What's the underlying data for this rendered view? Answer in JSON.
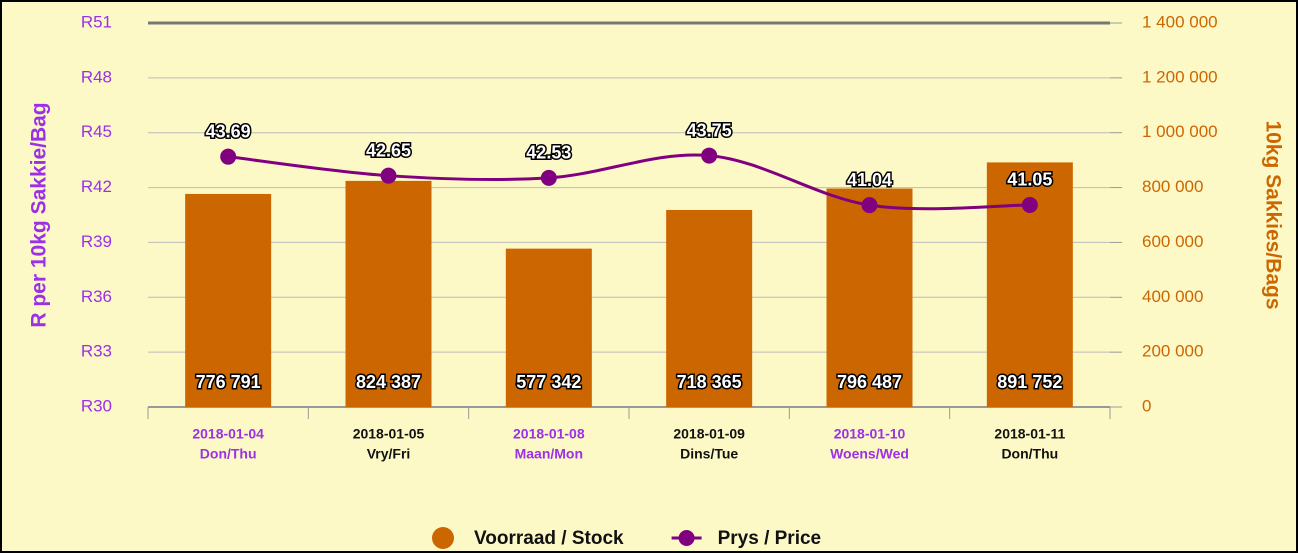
{
  "chart_data": {
    "type": "bar_line",
    "categories": [
      "2018-01-04",
      "2018-01-05",
      "2018-01-08",
      "2018-01-09",
      "2018-01-10",
      "2018-01-11"
    ],
    "category_days": [
      "Don/Thu",
      "Vry/Fri",
      "Maan/Mon",
      "Dins/Tue",
      "Woens/Wed",
      "Don/Thu"
    ],
    "category_colors": [
      "#9b30e8",
      "#111111",
      "#9b30e8",
      "#111111",
      "#9b30e8",
      "#111111"
    ],
    "y_label": "R per 10kg Sakkie/Bag",
    "y2_label": "10kg Sakkies/Bags",
    "ylim": [
      30,
      51
    ],
    "yticks": [
      {
        "value": 30,
        "label": "R30"
      },
      {
        "value": 33,
        "label": "R33"
      },
      {
        "value": 36,
        "label": "R36"
      },
      {
        "value": 39,
        "label": "R39"
      },
      {
        "value": 42,
        "label": "R42"
      },
      {
        "value": 45,
        "label": "R45"
      },
      {
        "value": 48,
        "label": "R48"
      },
      {
        "value": 51,
        "label": "R51"
      }
    ],
    "y2lim": [
      0,
      1400000
    ],
    "y2ticks": [
      0,
      {
        "value": 200000,
        "label": "200 000"
      },
      {
        "value": 400000,
        "label": "400 000"
      },
      {
        "value": 600000,
        "label": "600 000"
      },
      {
        "value": 800000,
        "label": "800 000"
      },
      {
        "value": 1000000,
        "label": "1 000 000"
      },
      {
        "value": 1200000,
        "label": "1 200 000"
      },
      {
        "value": 1400000,
        "label": "1 400 000"
      }
    ],
    "grid": true,
    "legend": "bottom",
    "series": [
      {
        "name": "Voorraad / Stock",
        "type": "bar",
        "axis": "y2",
        "color": "#cc6600",
        "values": [
          776791,
          824387,
          577342,
          718365,
          796487,
          891752
        ],
        "value_labels": [
          "776 791",
          "824 387",
          "577 342",
          "718 365",
          "796 487",
          "891 752"
        ]
      },
      {
        "name": "Prys / Price",
        "type": "line",
        "axis": "y",
        "color": "#800080",
        "values": [
          43.69,
          42.65,
          42.53,
          43.75,
          41.04,
          41.05
        ]
      }
    ]
  }
}
